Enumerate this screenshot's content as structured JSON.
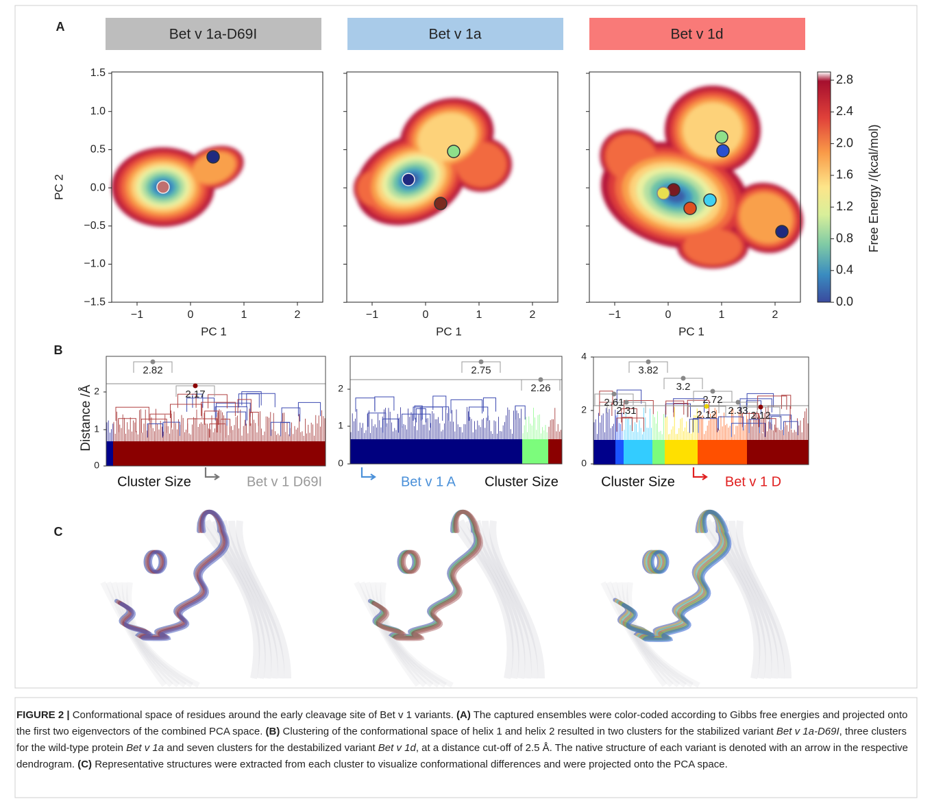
{
  "panel_labels": [
    "A",
    "B",
    "C"
  ],
  "panel_a": {
    "titles": [
      "Bet v 1a-D69I",
      "Bet v 1a",
      "Bet v 1d"
    ],
    "x_label": "PC 1",
    "y_label": "PC 2",
    "xticks": [
      "−1",
      "0",
      "1",
      "2"
    ],
    "yticks": [
      "1.5",
      "1.0",
      "0.5",
      "0.0",
      "−0.5",
      "−1.0",
      "−1.5"
    ],
    "colorbar": {
      "label": "Free Energy /(kcal/mol)",
      "ticks": [
        "2.8",
        "2.4",
        "2.0",
        "1.6",
        "1.2",
        "0.8",
        "0.4",
        "0.0"
      ]
    }
  },
  "panel_b": {
    "y_label": "Distance /Å",
    "plots": [
      {
        "yticks": [
          "0",
          "1",
          "2"
        ],
        "nodes": [
          "2.82",
          "2.17"
        ],
        "labels": [
          "Cluster Size",
          "Bet v 1 D69I"
        ]
      },
      {
        "yticks": [
          "0",
          "1",
          "2"
        ],
        "nodes": [
          "2.75",
          "2.26"
        ],
        "labels": [
          "Bet v 1 A",
          "Cluster Size"
        ]
      },
      {
        "yticks": [
          "0",
          "2",
          "4"
        ],
        "nodes": [
          "3.82",
          "3.2",
          "2.61",
          "2.31",
          "2.72",
          "2.33",
          "2.12",
          "2.12"
        ],
        "labels": [
          "Cluster Size",
          "Bet v 1 D"
        ]
      }
    ]
  },
  "caption": {
    "parts": [
      "FIGURE 2 |",
      " Conformational space of residues around the early cleavage site of Bet v 1 variants. ",
      "(A)",
      " The captured ensembles were color-coded according to Gibbs free energies and projected onto the first two eigenvectors of the combined PCA space. ",
      "(B)",
      " Clustering of the conformational space of helix 1 and helix 2 resulted in two clusters for the stabilized variant ",
      "Bet v 1a-D69I",
      ", three clusters for the wild-type protein ",
      "Bet v 1a",
      " and seven clusters for the destabilized variant ",
      "Bet v 1d",
      ", at a distance cut-off of 2.5 Å. The native structure of each variant is denoted with an arrow in the respective dendrogram. ",
      "(C)",
      " Representative structures were extracted from each cluster to visualize conformational differences and were projected onto the PCA space."
    ]
  }
}
